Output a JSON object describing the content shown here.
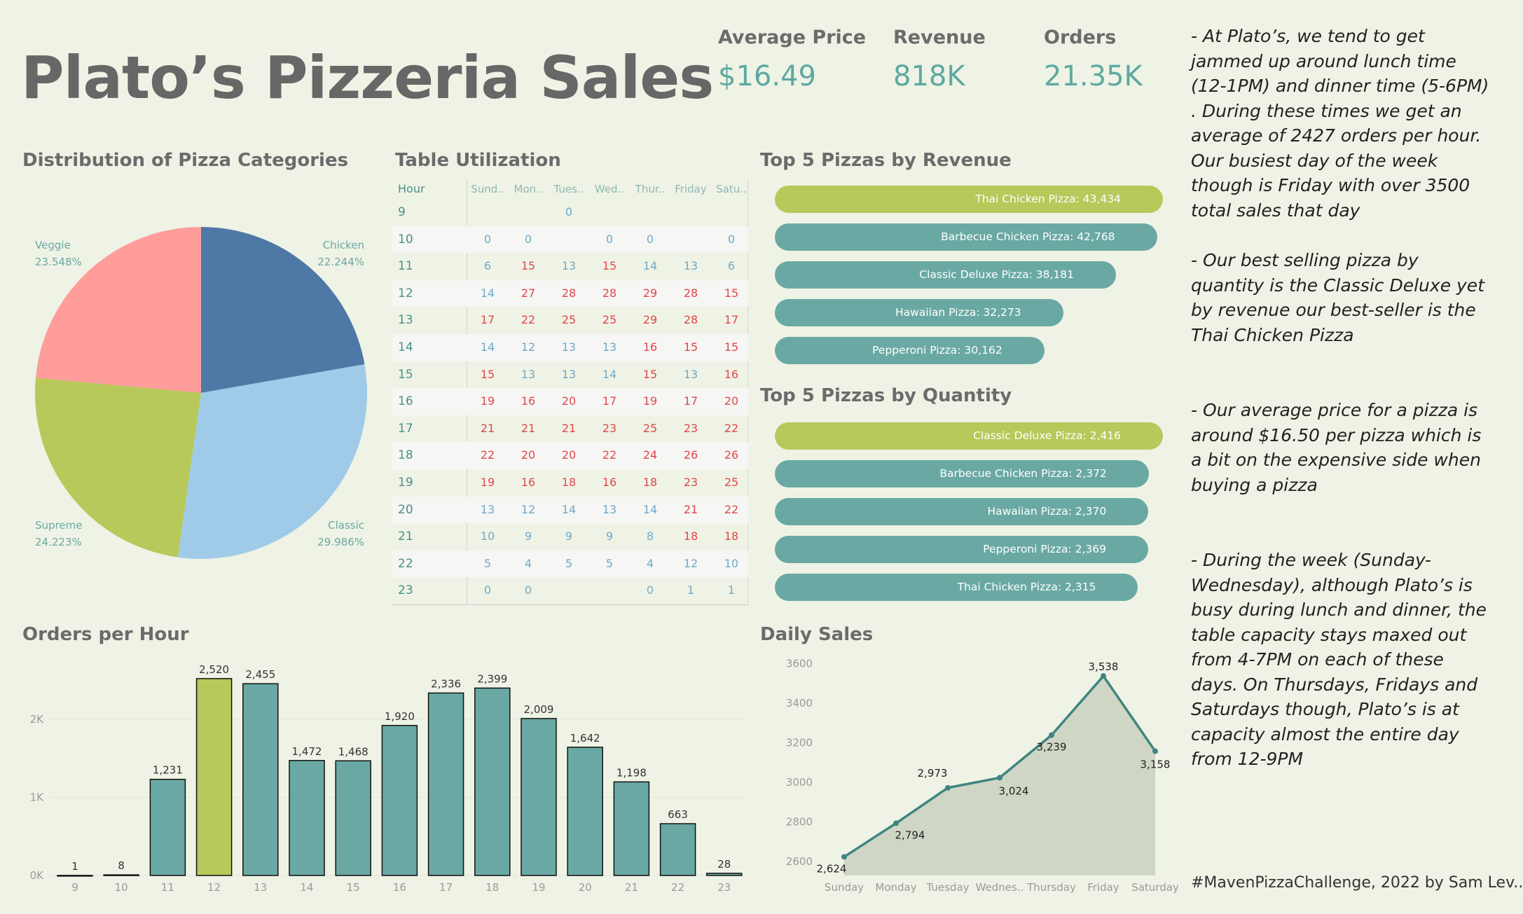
{
  "header": {
    "title": "Plato’s Pizzeria Sales"
  },
  "kpis": [
    {
      "label": "Average Price",
      "value": "$16.49"
    },
    {
      "label": "Revenue",
      "value": "818K"
    },
    {
      "label": "Orders",
      "value": "21.35K"
    }
  ],
  "sections": {
    "pie": "Distribution of Pizza Categories",
    "table": "Table Utilization",
    "top_revenue": "Top 5 Pizzas by Revenue",
    "top_quantity": "Top 5 Pizzas by Quantity",
    "orders_hour": "Orders per Hour",
    "daily": "Daily Sales"
  },
  "notes": [
    "- At Plato’s, we tend to get jammed up around lunch time (12-1PM) and dinner time (5-6PM) . During these times we get an average of 2427 orders per hour. Our busiest day of the week though is Friday with over 3500 total sales that day",
    "- Our best selling pizza by quantity is the Classic Deluxe yet by revenue our best-seller is the Thai Chicken Pizza",
    "- Our average price for a pizza is around $16.50 per pizza which is a bit on the expensive side when buying a pizza",
    "- During the week (Sunday-Wednesday), although Plato’s is busy during lunch and dinner, the table capacity stays maxed out from 4-7PM  on each of these days. On Thursdays, Fridays and Saturdays though, Plato’s is at capacity almost  the entire day from 12-9PM"
  ],
  "footer": "#MavenPizzaChallenge, 2022 by Sam Lev..",
  "colors": {
    "teal": "#6aa9a3",
    "green": "#b7c95a",
    "high": "#e0474c",
    "low": "#6fa9c9"
  },
  "chart_data": [
    {
      "type": "pie",
      "title": "Distribution of Pizza Categories",
      "slices": [
        {
          "name": "Chicken",
          "value": 22.244,
          "label": "22.244%",
          "color": "#4e79a7"
        },
        {
          "name": "Classic",
          "value": 29.986,
          "label": "29.986%",
          "color": "#a0cbe8"
        },
        {
          "name": "Supreme",
          "value": 24.223,
          "label": "24.223%",
          "color": "#b7c95a"
        },
        {
          "name": "Veggie",
          "value": 23.548,
          "label": "23.548%",
          "color": "#ff9d9a"
        }
      ]
    },
    {
      "type": "heatmap",
      "title": "Table Utilization",
      "row_header": "Hour",
      "columns": [
        "Sund..",
        "Mon..",
        "Tues..",
        "Wed..",
        "Thur..",
        "Friday",
        "Satu.."
      ],
      "rows": [
        {
          "hour": "9",
          "values": [
            null,
            null,
            0,
            null,
            null,
            null,
            null
          ]
        },
        {
          "hour": "10",
          "values": [
            0,
            0,
            null,
            0,
            0,
            null,
            0
          ]
        },
        {
          "hour": "11",
          "values": [
            6,
            15,
            13,
            15,
            14,
            13,
            6
          ]
        },
        {
          "hour": "12",
          "values": [
            14,
            27,
            28,
            28,
            29,
            28,
            15
          ]
        },
        {
          "hour": "13",
          "values": [
            17,
            22,
            25,
            25,
            29,
            28,
            17
          ]
        },
        {
          "hour": "14",
          "values": [
            14,
            12,
            13,
            13,
            16,
            15,
            15
          ]
        },
        {
          "hour": "15",
          "values": [
            15,
            13,
            13,
            14,
            15,
            13,
            16
          ]
        },
        {
          "hour": "16",
          "values": [
            19,
            16,
            20,
            17,
            19,
            17,
            20
          ]
        },
        {
          "hour": "17",
          "values": [
            21,
            21,
            21,
            23,
            25,
            23,
            22
          ]
        },
        {
          "hour": "18",
          "values": [
            22,
            20,
            20,
            22,
            24,
            26,
            26
          ]
        },
        {
          "hour": "19",
          "values": [
            19,
            16,
            18,
            16,
            18,
            23,
            25
          ]
        },
        {
          "hour": "20",
          "values": [
            13,
            12,
            14,
            13,
            14,
            21,
            22
          ]
        },
        {
          "hour": "21",
          "values": [
            10,
            9,
            9,
            9,
            8,
            18,
            18
          ]
        },
        {
          "hour": "22",
          "values": [
            5,
            4,
            5,
            5,
            4,
            12,
            10
          ]
        },
        {
          "hour": "23",
          "values": [
            0,
            0,
            null,
            null,
            0,
            1,
            1
          ]
        }
      ],
      "high_threshold": 15
    },
    {
      "type": "bar",
      "orientation": "horizontal",
      "title": "Top 5 Pizzas by Revenue",
      "items": [
        {
          "name": "Thai Chicken Pizza",
          "value": 43434,
          "label": "Thai Chicken Pizza: 43,434",
          "highlight": true
        },
        {
          "name": "Barbecue Chicken Pizza",
          "value": 42768,
          "label": "Barbecue Chicken Pizza: 42,768",
          "highlight": false
        },
        {
          "name": "Classic Deluxe Pizza",
          "value": 38181,
          "label": "Classic Deluxe Pizza: 38,181",
          "highlight": false
        },
        {
          "name": "Hawaiian Pizza",
          "value": 32273,
          "label": "Hawaiian Pizza: 32,273",
          "highlight": false
        },
        {
          "name": "Pepperoni Pizza",
          "value": 30162,
          "label": "Pepperoni Pizza: 30,162",
          "highlight": false
        }
      ]
    },
    {
      "type": "bar",
      "orientation": "horizontal",
      "title": "Top 5 Pizzas by Quantity",
      "items": [
        {
          "name": "Classic Deluxe Pizza",
          "value": 2416,
          "label": "Classic Deluxe Pizza: 2,416",
          "highlight": true
        },
        {
          "name": "Barbecue Chicken Pizza",
          "value": 2372,
          "label": "Barbecue Chicken Pizza: 2,372",
          "highlight": false
        },
        {
          "name": "Hawaiian Pizza",
          "value": 2370,
          "label": "Hawaiian Pizza: 2,370",
          "highlight": false
        },
        {
          "name": "Pepperoni Pizza",
          "value": 2369,
          "label": "Pepperoni Pizza: 2,369",
          "highlight": false
        },
        {
          "name": "Thai Chicken Pizza",
          "value": 2315,
          "label": "Thai Chicken Pizza: 2,315",
          "highlight": false
        }
      ]
    },
    {
      "type": "bar",
      "title": "Orders per Hour",
      "categories": [
        "9",
        "10",
        "11",
        "12",
        "13",
        "14",
        "15",
        "16",
        "17",
        "18",
        "19",
        "20",
        "21",
        "22",
        "23"
      ],
      "values": [
        1,
        8,
        1231,
        2520,
        2455,
        1472,
        1468,
        1920,
        2336,
        2399,
        2009,
        1642,
        1198,
        663,
        28
      ],
      "labels": [
        "1",
        "8",
        "1,231",
        "2,520",
        "2,455",
        "1,472",
        "1,468",
        "1,920",
        "2,336",
        "2,399",
        "2,009",
        "1,642",
        "1,198",
        "663",
        "28"
      ],
      "highlight_index": 3,
      "yticks": [
        {
          "v": 0,
          "t": "0K"
        },
        {
          "v": 1000,
          "t": "1K"
        },
        {
          "v": 2000,
          "t": "2K"
        }
      ],
      "ylim": [
        0,
        2600
      ]
    },
    {
      "type": "area",
      "title": "Daily Sales",
      "categories": [
        "Sunday",
        "Monday",
        "Tuesday",
        "Wednes..",
        "Thursday",
        "Friday",
        "Saturday"
      ],
      "values": [
        2624,
        2794,
        2973,
        3024,
        3239,
        3538,
        3158
      ],
      "labels": [
        "2,624",
        "2,794",
        "2,973",
        "3,024",
        "3,239",
        "3,538",
        "3,158"
      ],
      "yticks": [
        2600,
        2800,
        3000,
        3200,
        3400,
        3600
      ],
      "ylim": [
        2530,
        3620
      ]
    }
  ]
}
